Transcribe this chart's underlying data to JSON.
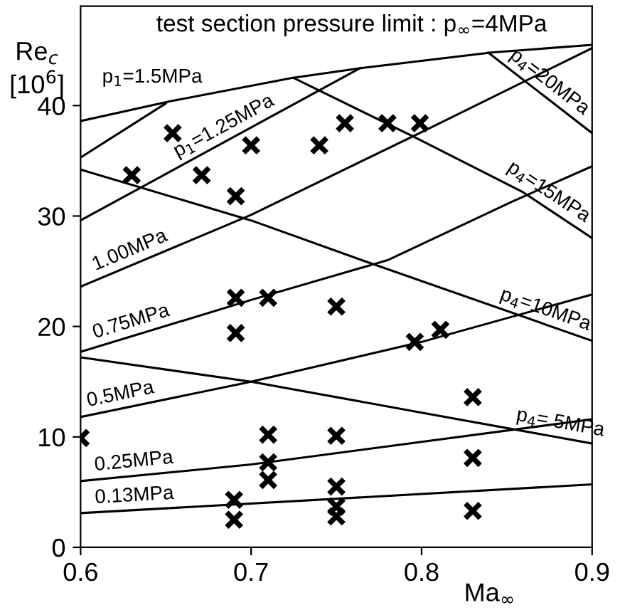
{
  "chart_data": {
    "type": "line",
    "xlabel": "Ma$_{∞}$",
    "ylabel": "Re$_{c}$\n[10$^{6}$]",
    "xlim": [
      0.6,
      0.9
    ],
    "ylim": [
      0,
      49
    ],
    "xticks": [
      0.6,
      0.7,
      0.8,
      0.9
    ],
    "yticks": [
      0,
      10,
      20,
      30,
      40
    ],
    "series": [
      {
        "color": "#000000",
        "x": [
          0.6,
          0.653,
          0.724,
          0.765,
          0.841,
          0.9
        ],
        "values": [
          38.6,
          40.4,
          42.5,
          43.4,
          44.8,
          45.5
        ]
      },
      {
        "color": "#000000",
        "x": [
          0.6,
          0.65
        ],
        "values": [
          35.3,
          40.2
        ]
      },
      {
        "color": "#000000",
        "x": [
          0.6,
          0.764
        ],
        "values": [
          29.6,
          43.4
        ]
      },
      {
        "color": "#000000",
        "x": [
          0.6,
          0.7,
          0.8,
          0.9
        ],
        "values": [
          23.6,
          30.1,
          37.6,
          45.2
        ]
      },
      {
        "color": "#000000",
        "x": [
          0.6,
          0.7,
          0.78,
          0.853,
          0.9
        ],
        "values": [
          17.7,
          22.4,
          26.0,
          31.3,
          34.5
        ]
      },
      {
        "color": "#000000",
        "x": [
          0.6,
          0.7,
          0.8,
          0.9
        ],
        "values": [
          11.8,
          15.0,
          18.6,
          22.9
        ]
      },
      {
        "color": "#000000",
        "x": [
          0.6,
          0.7,
          0.9
        ],
        "values": [
          6.0,
          7.5,
          11.6
        ]
      },
      {
        "color": "#000000",
        "x": [
          0.6,
          0.9
        ],
        "values": [
          3.1,
          5.7
        ]
      },
      {
        "color": "#000000",
        "x": [
          0.6,
          0.7,
          0.8,
          0.9
        ],
        "values": [
          17.2,
          15.0,
          12.2,
          9.4
        ]
      },
      {
        "color": "#000000",
        "x": [
          0.6,
          0.7,
          0.765,
          0.9
        ],
        "values": [
          34.2,
          29.6,
          26.0,
          18.7
        ]
      },
      {
        "color": "#000000",
        "x": [
          0.725,
          0.795,
          0.859,
          0.9
        ],
        "values": [
          42.5,
          37.2,
          32.2,
          28.0
        ]
      },
      {
        "color": "#000000",
        "x": [
          0.839,
          0.9
        ],
        "values": [
          44.8,
          37.5
        ]
      },
      {
        "type": "scatter",
        "marker": "cross",
        "color": "#000000",
        "x": [
          0.654,
          0.7,
          0.74,
          0.755,
          0.78,
          0.799,
          0.63,
          0.671,
          0.691,
          0.691,
          0.71,
          0.75,
          0.691,
          0.796,
          0.811,
          0.83,
          0.6,
          0.71,
          0.75,
          0.71,
          0.71,
          0.75,
          0.75,
          0.75,
          0.69,
          0.69,
          0.83,
          0.83
        ],
        "values": [
          37.5,
          36.4,
          36.4,
          38.4,
          38.4,
          38.4,
          33.7,
          33.7,
          31.8,
          22.6,
          22.6,
          21.8,
          19.4,
          18.6,
          19.7,
          13.6,
          9.9,
          10.2,
          10.1,
          7.7,
          6.1,
          5.5,
          3.7,
          2.8,
          4.3,
          2.5,
          8.1,
          3.3
        ]
      }
    ],
    "annotations": [
      "test section pressure limit : p$_{∞}$=4MPa",
      "p$_{1}$=1.5MPa",
      {
        "text": "p$_{1}$=1.25MPa",
        "x": 0.688,
        "y": 37.0
      },
      {
        "text": "1.00MPa",
        "x": 0.632,
        "y": 25.7
      },
      {
        "text": "0.75MPa",
        "x": 0.632,
        "y": 19.2
      },
      {
        "text": "0.5MPa",
        "x": 0.625,
        "y": 12.6
      },
      {
        "text": "0.25MPa",
        "x": 0.632,
        "y": 6.5
      },
      {
        "text": "0.13MPa",
        "x": 0.632,
        "y": 3.4
      },
      {
        "text": "p$_{4}$= 5MPa",
        "x": 0.88,
        "y": 10.0
      },
      {
        "text": "p$_{4}$=10MPa",
        "x": 0.87,
        "y": 20.3
      },
      {
        "text": "p$_{4}$=15MPa",
        "x": 0.87,
        "y": 31.1
      },
      {
        "text": "p$_{4}$=20MPa",
        "x": 0.87,
        "y": 41.1
      }
    ]
  }
}
